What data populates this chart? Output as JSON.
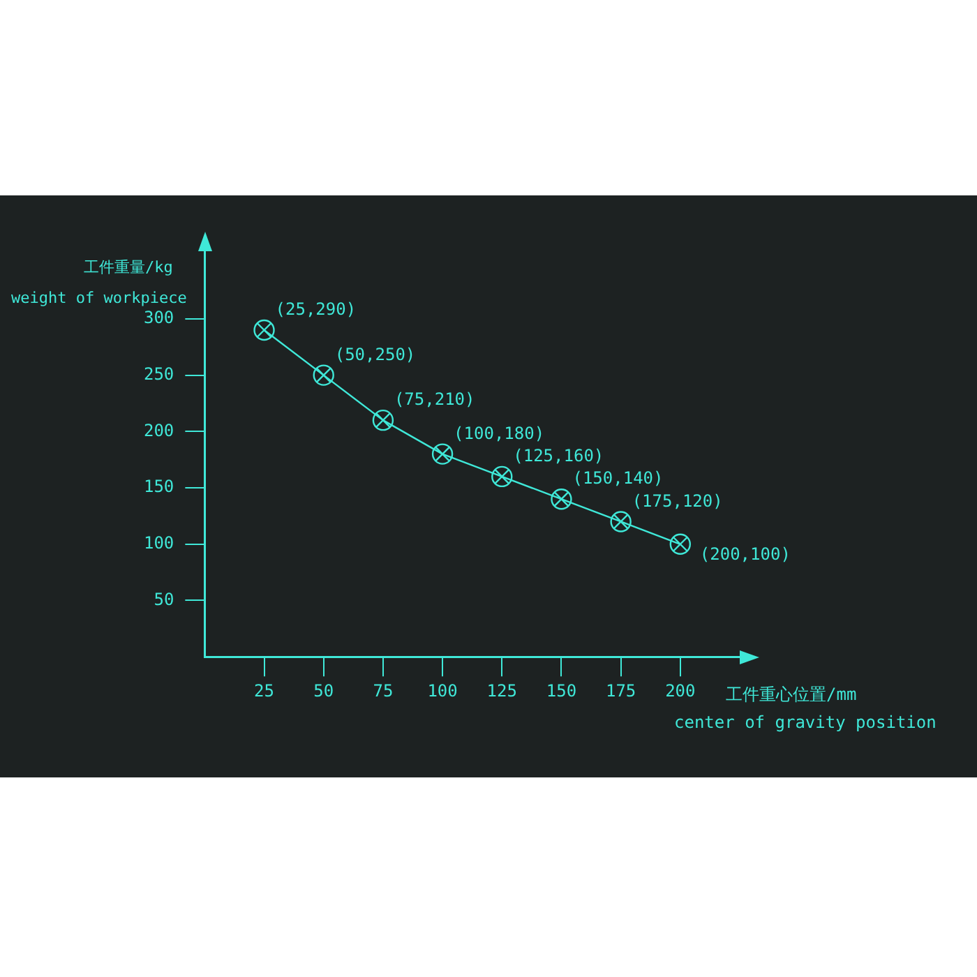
{
  "chart_data": {
    "type": "line",
    "xlabel": "工件重心位置/mm\ncenter of gravity position",
    "ylabel": "工件重量/kg\nweight of workpiece",
    "x": [
      25,
      50,
      75,
      100,
      125,
      150,
      175,
      200
    ],
    "series": [
      {
        "color": "#3fe8d8",
        "values": [
          290,
          250,
          210,
          180,
          160,
          140,
          120,
          100
        ]
      }
    ],
    "annotations": [
      {
        "text": "(25,290)",
        "x": 25,
        "y": 290
      },
      {
        "text": "(50,250)",
        "x": 50,
        "y": 250
      },
      {
        "text": "(75,210)",
        "x": 75,
        "y": 210
      },
      {
        "text": "(100,180)",
        "x": 100,
        "y": 180
      },
      {
        "text": "(125,160)",
        "x": 125,
        "y": 160
      },
      {
        "text": "(150,140)",
        "x": 150,
        "y": 140
      },
      {
        "text": "(175,120)",
        "x": 175,
        "y": 120
      },
      {
        "text": "(200,100)",
        "x": 200,
        "y": 100
      }
    ],
    "xlim": [
      0,
      225
    ],
    "ylim": [
      0,
      360
    ],
    "xticks": [
      25,
      50,
      75,
      100,
      125,
      150,
      175,
      200
    ],
    "yticks": [
      50,
      100,
      150,
      200,
      250,
      300
    ],
    "marker": "circle",
    "grid": false,
    "legend": false
  }
}
